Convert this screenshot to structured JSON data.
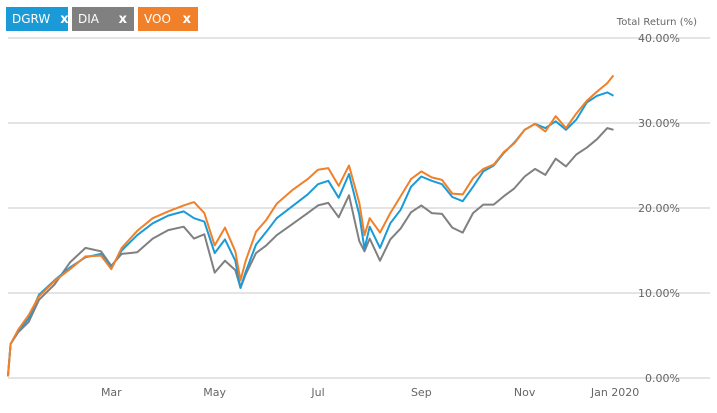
{
  "legend_tags": [
    {
      "label": "DGRW",
      "close": "x",
      "color": "#1a9bd7"
    },
    {
      "label": "DIA",
      "close": "x",
      "color": "#808080"
    },
    {
      "label": "VOO",
      "close": "x",
      "color": "#f0802a"
    }
  ],
  "chart_data": {
    "type": "line",
    "ylabel": "Total Return (%)",
    "ylim": [
      0,
      40
    ],
    "yticks": [
      {
        "value": 40,
        "label": "40.00%"
      },
      {
        "value": 30,
        "label": "30.00%"
      },
      {
        "value": 20,
        "label": "20.00%"
      },
      {
        "value": 10,
        "label": "10.00%"
      },
      {
        "value": 0,
        "label": "0.00%"
      }
    ],
    "xlim": [
      0,
      12
    ],
    "xticks": [
      {
        "value": 2.0,
        "label": "Mar"
      },
      {
        "value": 4.0,
        "label": "May"
      },
      {
        "value": 6.0,
        "label": "Jul"
      },
      {
        "value": 8.0,
        "label": "Sep"
      },
      {
        "value": 10.0,
        "label": "Nov"
      },
      {
        "value": 11.75,
        "label": "Jan 2020"
      }
    ],
    "grid": true,
    "series": [
      {
        "name": "DGRW",
        "color": "#1a9bd7",
        "points": [
          [
            0,
            0.3
          ],
          [
            0.05,
            4
          ],
          [
            0.2,
            5.6
          ],
          [
            0.4,
            7
          ],
          [
            0.6,
            9.8
          ],
          [
            0.9,
            11.5
          ],
          [
            1.2,
            13
          ],
          [
            1.5,
            14.2
          ],
          [
            1.8,
            14.6
          ],
          [
            2.0,
            13
          ],
          [
            2.2,
            15
          ],
          [
            2.5,
            16.8
          ],
          [
            2.8,
            18.2
          ],
          [
            3.1,
            19.1
          ],
          [
            3.4,
            19.6
          ],
          [
            3.6,
            18.8
          ],
          [
            3.8,
            18.4
          ],
          [
            4.0,
            14.7
          ],
          [
            4.2,
            16.3
          ],
          [
            4.4,
            13.8
          ],
          [
            4.5,
            10.6
          ],
          [
            4.6,
            12.5
          ],
          [
            4.8,
            15.7
          ],
          [
            5.0,
            17.2
          ],
          [
            5.2,
            18.8
          ],
          [
            5.5,
            20.2
          ],
          [
            5.8,
            21.6
          ],
          [
            6.0,
            22.8
          ],
          [
            6.2,
            23.2
          ],
          [
            6.4,
            21.2
          ],
          [
            6.6,
            24
          ],
          [
            6.8,
            19.2
          ],
          [
            6.9,
            15.2
          ],
          [
            7.0,
            17.8
          ],
          [
            7.2,
            15.3
          ],
          [
            7.4,
            18.2
          ],
          [
            7.6,
            19.8
          ],
          [
            7.8,
            22.5
          ],
          [
            8.0,
            23.7
          ],
          [
            8.2,
            23.2
          ],
          [
            8.4,
            22.8
          ],
          [
            8.6,
            21.3
          ],
          [
            8.8,
            20.8
          ],
          [
            9.0,
            22.5
          ],
          [
            9.2,
            24.3
          ],
          [
            9.4,
            25
          ],
          [
            9.6,
            26.5
          ],
          [
            9.8,
            27.7
          ],
          [
            10.0,
            29.2
          ],
          [
            10.2,
            29.9
          ],
          [
            10.4,
            29.4
          ],
          [
            10.6,
            30.2
          ],
          [
            10.8,
            29.2
          ],
          [
            11.0,
            30.4
          ],
          [
            11.2,
            32.4
          ],
          [
            11.4,
            33.2
          ],
          [
            11.6,
            33.6
          ],
          [
            11.72,
            33.2
          ]
        ]
      },
      {
        "name": "DIA",
        "color": "#808080",
        "points": [
          [
            0,
            0.2
          ],
          [
            0.05,
            4
          ],
          [
            0.2,
            5.4
          ],
          [
            0.4,
            6.6
          ],
          [
            0.6,
            9.2
          ],
          [
            0.9,
            11
          ],
          [
            1.2,
            13.6
          ],
          [
            1.5,
            15.3
          ],
          [
            1.8,
            14.9
          ],
          [
            2.0,
            13.2
          ],
          [
            2.2,
            14.6
          ],
          [
            2.5,
            14.8
          ],
          [
            2.8,
            16.4
          ],
          [
            3.1,
            17.4
          ],
          [
            3.4,
            17.8
          ],
          [
            3.6,
            16.4
          ],
          [
            3.8,
            16.9
          ],
          [
            4.0,
            12.4
          ],
          [
            4.2,
            13.8
          ],
          [
            4.4,
            12.7
          ],
          [
            4.5,
            10.6
          ],
          [
            4.6,
            12.2
          ],
          [
            4.8,
            14.7
          ],
          [
            5.0,
            15.6
          ],
          [
            5.2,
            16.8
          ],
          [
            5.5,
            18.1
          ],
          [
            5.8,
            19.4
          ],
          [
            6.0,
            20.3
          ],
          [
            6.2,
            20.6
          ],
          [
            6.4,
            18.9
          ],
          [
            6.6,
            21.5
          ],
          [
            6.8,
            16.1
          ],
          [
            6.9,
            14.9
          ],
          [
            7.0,
            16.4
          ],
          [
            7.2,
            13.8
          ],
          [
            7.4,
            16.3
          ],
          [
            7.6,
            17.6
          ],
          [
            7.8,
            19.5
          ],
          [
            8.0,
            20.3
          ],
          [
            8.2,
            19.4
          ],
          [
            8.4,
            19.3
          ],
          [
            8.6,
            17.7
          ],
          [
            8.8,
            17.1
          ],
          [
            9.0,
            19.4
          ],
          [
            9.2,
            20.4
          ],
          [
            9.4,
            20.4
          ],
          [
            9.6,
            21.4
          ],
          [
            9.8,
            22.3
          ],
          [
            10.0,
            23.7
          ],
          [
            10.2,
            24.6
          ],
          [
            10.4,
            23.9
          ],
          [
            10.6,
            25.8
          ],
          [
            10.8,
            24.9
          ],
          [
            11.0,
            26.3
          ],
          [
            11.2,
            27.1
          ],
          [
            11.4,
            28.1
          ],
          [
            11.6,
            29.4
          ],
          [
            11.72,
            29.2
          ]
        ]
      },
      {
        "name": "VOO",
        "color": "#f0802a",
        "points": [
          [
            0,
            0.2
          ],
          [
            0.05,
            4
          ],
          [
            0.2,
            5.7
          ],
          [
            0.4,
            7.4
          ],
          [
            0.6,
            9.6
          ],
          [
            0.9,
            11.4
          ],
          [
            1.2,
            12.8
          ],
          [
            1.5,
            14.3
          ],
          [
            1.8,
            14.4
          ],
          [
            2.0,
            12.8
          ],
          [
            2.2,
            15.3
          ],
          [
            2.5,
            17.3
          ],
          [
            2.8,
            18.8
          ],
          [
            3.1,
            19.6
          ],
          [
            3.4,
            20.3
          ],
          [
            3.6,
            20.7
          ],
          [
            3.8,
            19.4
          ],
          [
            4.0,
            15.6
          ],
          [
            4.2,
            17.7
          ],
          [
            4.4,
            14.9
          ],
          [
            4.5,
            11.5
          ],
          [
            4.6,
            13.8
          ],
          [
            4.8,
            17.2
          ],
          [
            5.0,
            18.6
          ],
          [
            5.2,
            20.5
          ],
          [
            5.5,
            22.1
          ],
          [
            5.8,
            23.4
          ],
          [
            6.0,
            24.5
          ],
          [
            6.2,
            24.7
          ],
          [
            6.4,
            22.6
          ],
          [
            6.6,
            25
          ],
          [
            6.8,
            20.6
          ],
          [
            6.9,
            16.8
          ],
          [
            7.0,
            18.8
          ],
          [
            7.2,
            17.1
          ],
          [
            7.4,
            19.4
          ],
          [
            7.6,
            21.4
          ],
          [
            7.8,
            23.4
          ],
          [
            8.0,
            24.3
          ],
          [
            8.2,
            23.6
          ],
          [
            8.4,
            23.3
          ],
          [
            8.6,
            21.7
          ],
          [
            8.8,
            21.6
          ],
          [
            9.0,
            23.5
          ],
          [
            9.2,
            24.6
          ],
          [
            9.4,
            25.1
          ],
          [
            9.6,
            26.6
          ],
          [
            9.8,
            27.6
          ],
          [
            10.0,
            29.2
          ],
          [
            10.2,
            29.9
          ],
          [
            10.4,
            29
          ],
          [
            10.6,
            30.8
          ],
          [
            10.8,
            29.4
          ],
          [
            11.0,
            31.1
          ],
          [
            11.2,
            32.6
          ],
          [
            11.4,
            33.7
          ],
          [
            11.6,
            34.7
          ],
          [
            11.72,
            35.6
          ]
        ]
      }
    ]
  }
}
